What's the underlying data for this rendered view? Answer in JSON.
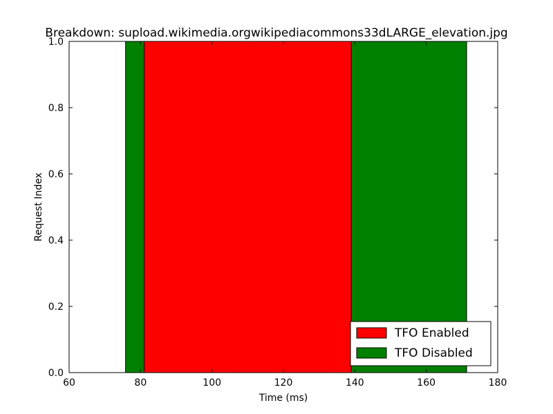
{
  "chart_data": {
    "type": "bar",
    "orientation": "horizontal-span",
    "title": "Breakdown: supload.wikimedia.orgwikipediacommons33dLARGE_elevation.jpg",
    "xlabel": "Time (ms)",
    "ylabel": "Request Index",
    "xlim": [
      60,
      180
    ],
    "ylim": [
      0.0,
      1.0
    ],
    "x_ticks": [
      "60",
      "80",
      "100",
      "120",
      "140",
      "160",
      "180"
    ],
    "y_ticks": [
      "0.0",
      "0.2",
      "0.4",
      "0.6",
      "0.8",
      "1.0"
    ],
    "grid": false,
    "legend_position": "lower-right",
    "series": [
      {
        "name": "TFO Disabled",
        "color": "#008000",
        "spans": [
          {
            "start": 75.8,
            "end": 171.3,
            "y0": 0.0,
            "y1": 1.0
          }
        ]
      },
      {
        "name": "TFO Enabled",
        "color": "#ff0000",
        "spans": [
          {
            "start": 81.0,
            "end": 139.0,
            "y0": 0.0,
            "y1": 1.0
          }
        ]
      }
    ],
    "legend": [
      {
        "label": "TFO Enabled",
        "color": "#ff0000"
      },
      {
        "label": "TFO Disabled",
        "color": "#008000"
      }
    ]
  }
}
